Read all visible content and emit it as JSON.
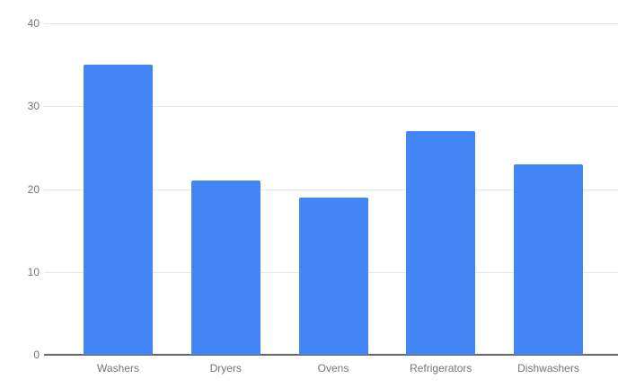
{
  "chart_data": {
    "type": "bar",
    "categories": [
      "Washers",
      "Dryers",
      "Ovens",
      "Refrigerators",
      "Dishwashers"
    ],
    "values": [
      35,
      21,
      19,
      27,
      23
    ],
    "title": "",
    "xlabel": "",
    "ylabel": "",
    "ylim": [
      0,
      40
    ],
    "y_ticks": [
      0,
      10,
      20,
      30,
      40
    ],
    "grid": "horizontal",
    "legend_position": "none",
    "colors": {
      "bar": "#4285f4",
      "gridline": "#e6e6e6",
      "baseline": "#666666",
      "axis_text": "#757575",
      "background": "#ffffff"
    }
  }
}
